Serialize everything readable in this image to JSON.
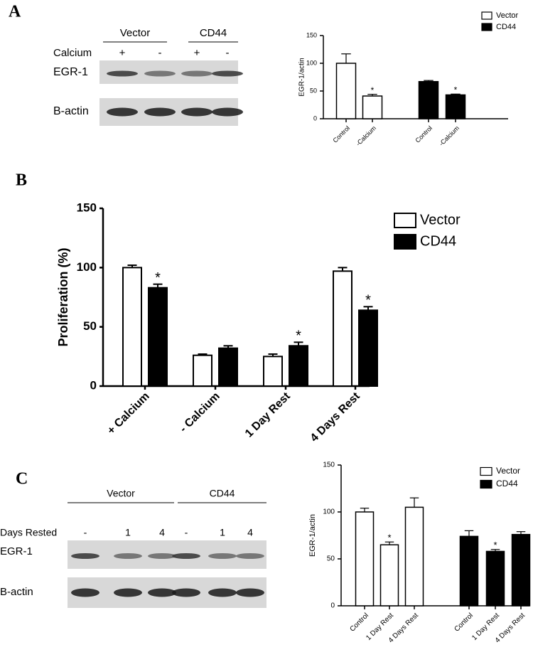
{
  "panel_labels": [
    "A",
    "B",
    "C"
  ],
  "blots": [
    {
      "groups": [
        "Vector",
        "CD44"
      ],
      "condition_label": "Calcium",
      "conditions": [
        "+",
        "-",
        "+",
        "-"
      ],
      "rows": [
        "EGR-1",
        "B-actin"
      ]
    },
    {
      "groups": [
        "Vector",
        "CD44"
      ],
      "condition_label": "Days Rested",
      "conditions": [
        "-",
        "1",
        "4",
        "-",
        "1",
        "4"
      ],
      "rows": [
        "EGR-1",
        "B-actin"
      ]
    }
  ],
  "chart_data": [
    {
      "type": "bar",
      "y_label": "EGR-1/actin",
      "categories": [
        "Control",
        "-Calcium",
        "Control",
        "-Calcium"
      ],
      "series": [
        {
          "name": "Vector",
          "color": "#ffffff",
          "values": [
            100,
            41,
            null,
            null
          ],
          "errors": [
            17,
            3,
            null,
            null
          ],
          "significance": [
            null,
            "*",
            null,
            null
          ]
        },
        {
          "name": "CD44",
          "color": "#000000",
          "values": [
            null,
            null,
            67,
            43
          ],
          "errors": [
            null,
            null,
            2,
            1.5
          ],
          "significance": [
            null,
            null,
            null,
            "*"
          ]
        }
      ],
      "ylim": [
        0,
        150
      ],
      "yticks": [
        0,
        50,
        100,
        150
      ]
    },
    {
      "type": "bar",
      "y_label": "Proliferation (%)",
      "categories": [
        "+ Calcium",
        "- Calcium",
        "1 Day Rest",
        "4 Days Rest"
      ],
      "series": [
        {
          "name": "Vector",
          "color": "#ffffff",
          "values": [
            100,
            26,
            25,
            97
          ],
          "errors": [
            2,
            1,
            2,
            3
          ],
          "significance": [
            null,
            null,
            null,
            null
          ]
        },
        {
          "name": "CD44",
          "color": "#000000",
          "values": [
            83,
            32,
            34,
            64
          ],
          "errors": [
            3,
            2,
            3,
            3
          ],
          "significance": [
            "*",
            null,
            "*",
            "*"
          ]
        }
      ],
      "ylim": [
        0,
        150
      ],
      "yticks": [
        0,
        50,
        100,
        150
      ]
    },
    {
      "type": "bar",
      "y_label": "EGR-1/actin",
      "categories": [
        "Control",
        "1 Day Rest",
        "4 Days Rest",
        "Control",
        "1 Day Rest",
        "4 Days Rest"
      ],
      "series": [
        {
          "name": "Vector",
          "color": "#ffffff",
          "values": [
            100,
            65,
            105,
            null,
            null,
            null
          ],
          "errors": [
            4,
            3,
            10,
            null,
            null,
            null
          ],
          "significance": [
            null,
            "*",
            null,
            null,
            null,
            null
          ]
        },
        {
          "name": "CD44",
          "color": "#000000",
          "values": [
            null,
            null,
            null,
            74,
            58,
            76
          ],
          "errors": [
            null,
            null,
            null,
            6,
            2,
            3
          ],
          "significance": [
            null,
            null,
            null,
            null,
            "*",
            null
          ]
        }
      ],
      "ylim": [
        0,
        150
      ],
      "yticks": [
        0,
        50,
        100,
        150
      ]
    }
  ]
}
